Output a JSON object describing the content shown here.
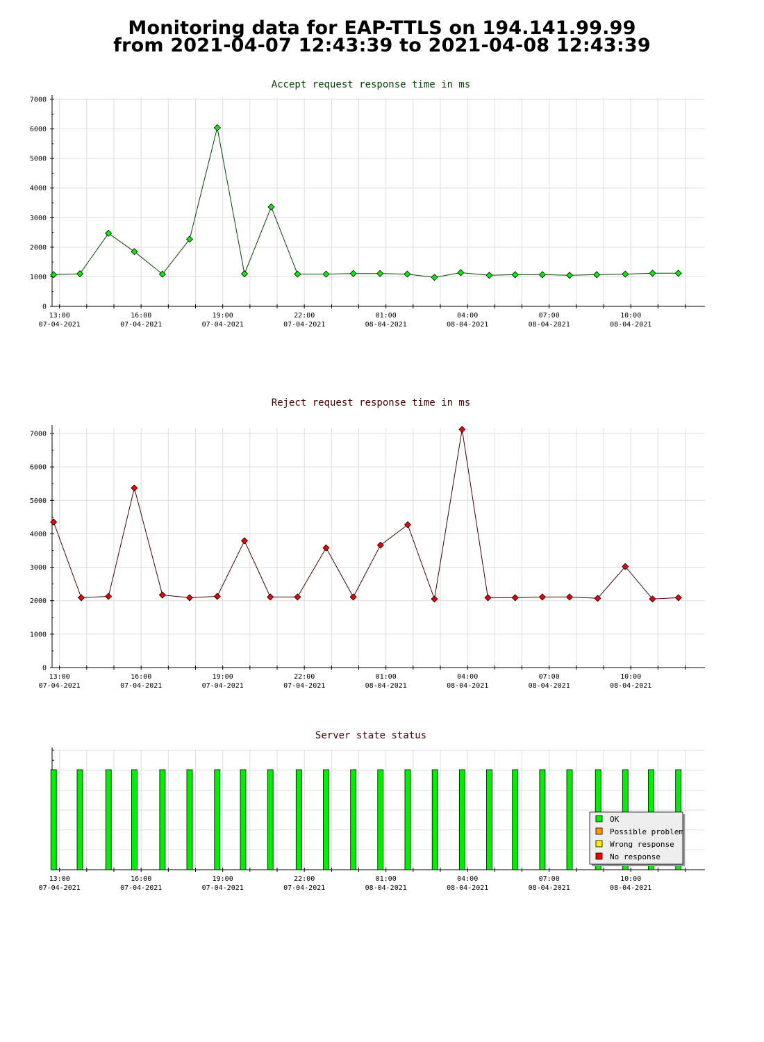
{
  "page": {
    "title_line1": "Monitoring data for EAP-TTLS on 194.141.99.99",
    "title_line2": "from 2021-04-07 12:43:39 to 2021-04-08 12:43:39"
  },
  "colors": {
    "accept_title": "#004400",
    "reject_title": "#440000",
    "status_title": "#440000",
    "accept_line": "#004400",
    "accept_marker": "#00ee00",
    "reject_line": "#440000",
    "reject_marker": "#ee0000",
    "grid": "#dddddd",
    "ok": "#00ee00",
    "possible_problem": "#ff9900",
    "wrong_response": "#ffee00",
    "no_response": "#ee0000"
  },
  "chart_data": [
    {
      "type": "line",
      "title": "Accept request response time in ms",
      "x": [
        "12:47",
        "13:45",
        "14:48",
        "15:45",
        "16:47",
        "17:47",
        "18:48",
        "19:48",
        "20:47",
        "21:45",
        "22:48",
        "23:48",
        "00:47",
        "01:47",
        "02:47",
        "03:45",
        "04:48",
        "05:45",
        "06:45",
        "07:45",
        "08:45",
        "09:48",
        "10:48",
        "11:45"
      ],
      "values": [
        1070,
        1100,
        2470,
        1850,
        1090,
        2270,
        6040,
        1100,
        3360,
        1090,
        1090,
        1110,
        1110,
        1090,
        980,
        1140,
        1050,
        1070,
        1070,
        1050,
        1070,
        1090,
        1120,
        1120
      ],
      "ylim": [
        0,
        7000
      ],
      "yticks": [
        "0",
        "1000",
        "2000",
        "3000",
        "4000",
        "5000",
        "6000",
        "7000"
      ],
      "xticks": [
        {
          "time": "13:00",
          "date": "07-04-2021"
        },
        {
          "time": "16:00",
          "date": "07-04-2021"
        },
        {
          "time": "19:00",
          "date": "07-04-2021"
        },
        {
          "time": "22:00",
          "date": "07-04-2021"
        },
        {
          "time": "01:00",
          "date": "08-04-2021"
        },
        {
          "time": "04:00",
          "date": "08-04-2021"
        },
        {
          "time": "07:00",
          "date": "08-04-2021"
        },
        {
          "time": "10:00",
          "date": "08-04-2021"
        }
      ],
      "grid": true
    },
    {
      "type": "line",
      "title": "Reject request response time in ms",
      "x": [
        "12:47",
        "13:48",
        "14:48",
        "15:45",
        "16:47",
        "17:47",
        "18:48",
        "19:48",
        "20:45",
        "21:45",
        "22:48",
        "23:48",
        "00:48",
        "01:48",
        "02:47",
        "03:48",
        "04:45",
        "05:45",
        "06:45",
        "07:45",
        "08:47",
        "09:48",
        "10:48",
        "11:45"
      ],
      "values": [
        4350,
        2090,
        2130,
        5370,
        2170,
        2090,
        2130,
        3790,
        2110,
        2110,
        3580,
        2110,
        3660,
        4270,
        2050,
        7120,
        2090,
        2090,
        2110,
        2110,
        2070,
        3020,
        2050,
        2090
      ],
      "ylim": [
        0,
        7000
      ],
      "yticks": [
        "0",
        "1000",
        "2000",
        "3000",
        "4000",
        "5000",
        "6000",
        "7000"
      ],
      "xticks": [
        {
          "time": "13:00",
          "date": "07-04-2021"
        },
        {
          "time": "16:00",
          "date": "07-04-2021"
        },
        {
          "time": "19:00",
          "date": "07-04-2021"
        },
        {
          "time": "22:00",
          "date": "07-04-2021"
        },
        {
          "time": "01:00",
          "date": "08-04-2021"
        },
        {
          "time": "04:00",
          "date": "08-04-2021"
        },
        {
          "time": "07:00",
          "date": "08-04-2021"
        },
        {
          "time": "10:00",
          "date": "08-04-2021"
        }
      ],
      "grid": true
    },
    {
      "type": "bar",
      "title": "Server state status",
      "x": [
        "12:47",
        "13:45",
        "14:48",
        "15:45",
        "16:47",
        "17:47",
        "18:48",
        "19:45",
        "20:45",
        "21:48",
        "22:48",
        "23:48",
        "00:48",
        "01:48",
        "02:48",
        "03:48",
        "04:48",
        "05:45",
        "06:45",
        "07:45",
        "08:48",
        "09:48",
        "10:45",
        "11:45"
      ],
      "states": [
        "OK",
        "OK",
        "OK",
        "OK",
        "OK",
        "OK",
        "OK",
        "OK",
        "OK",
        "OK",
        "OK",
        "OK",
        "OK",
        "OK",
        "OK",
        "OK",
        "OK",
        "OK",
        "OK",
        "OK",
        "OK",
        "OK",
        "OK",
        "OK"
      ],
      "legend": [
        "OK",
        "Possible problem",
        "Wrong response",
        "No response"
      ],
      "legend_position": "bottom-right",
      "xticks": [
        {
          "time": "13:00",
          "date": "07-04-2021"
        },
        {
          "time": "16:00",
          "date": "07-04-2021"
        },
        {
          "time": "19:00",
          "date": "07-04-2021"
        },
        {
          "time": "22:00",
          "date": "07-04-2021"
        },
        {
          "time": "01:00",
          "date": "08-04-2021"
        },
        {
          "time": "04:00",
          "date": "08-04-2021"
        },
        {
          "time": "07:00",
          "date": "08-04-2021"
        },
        {
          "time": "10:00",
          "date": "08-04-2021"
        }
      ],
      "grid": true
    }
  ]
}
